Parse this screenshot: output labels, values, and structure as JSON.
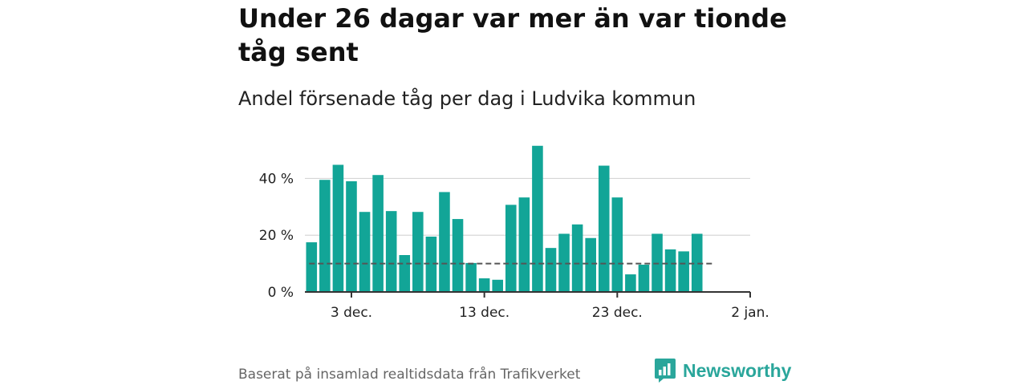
{
  "title": "Under 26 dagar var mer än var tionde tåg sent",
  "subtitle": "Andel försenade tåg per dag i Ludvika kommun",
  "source": "Baserat på insamlad realtidsdata från Trafikverket",
  "brand": {
    "name": "Newsworthy",
    "color": "#2aa69b"
  },
  "colors": {
    "bar": "#12a597",
    "grid": "#d6d6d6",
    "axis": "#333333",
    "reference": "#555555"
  },
  "chart_data": {
    "type": "bar",
    "unit": "%",
    "categories": [
      "2023-11-30",
      "2023-12-01",
      "2023-12-02",
      "2023-12-03",
      "2023-12-04",
      "2023-12-05",
      "2023-12-06",
      "2023-12-07",
      "2023-12-08",
      "2023-12-09",
      "2023-12-10",
      "2023-12-11",
      "2023-12-12",
      "2023-12-13",
      "2023-12-14",
      "2023-12-15",
      "2023-12-16",
      "2023-12-17",
      "2023-12-18",
      "2023-12-19",
      "2023-12-20",
      "2023-12-21",
      "2023-12-22",
      "2023-12-23",
      "2023-12-24",
      "2023-12-25",
      "2023-12-26",
      "2023-12-27",
      "2023-12-28",
      "2023-12-29",
      "2023-12-30"
    ],
    "values": [
      17.5,
      39.5,
      44.8,
      39,
      28.2,
      41.2,
      28.5,
      13,
      28.2,
      19.5,
      35.2,
      25.7,
      10.2,
      4.8,
      4.3,
      30.7,
      33.3,
      51.5,
      15.5,
      20.5,
      23.8,
      19,
      44.5,
      33.3,
      6.2,
      9.6,
      20.5,
      15,
      14.3,
      20.5,
      0
    ],
    "reference_line": {
      "value": 10
    },
    "ylim": [
      0,
      52
    ],
    "yticks": [
      0,
      20,
      40
    ],
    "ytick_labels": [
      "0 %",
      "20 %",
      "40 %"
    ],
    "xtick_labels": [
      "3 dec.",
      "13 dec.",
      "23 dec.",
      "2 jan."
    ],
    "xtick_dates": [
      "2023-12-03",
      "2023-12-13",
      "2023-12-23",
      "2024-01-02"
    ],
    "grid": true
  }
}
